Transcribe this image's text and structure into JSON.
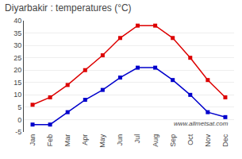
{
  "chart_data": {
    "type": "line",
    "title": "Diyarbakir : temperatures (°C)",
    "categories": [
      "Jan",
      "Feb",
      "Mar",
      "Apr",
      "May",
      "Jun",
      "Jul",
      "Aug",
      "Sep",
      "Oct",
      "Nov",
      "Dec"
    ],
    "series": [
      {
        "color": "#dd0000",
        "marker": "square",
        "line_style": "solid",
        "values": [
          6,
          9,
          14,
          20,
          26,
          33,
          38,
          38,
          33,
          25,
          16,
          9
        ]
      },
      {
        "color": "#0000cc",
        "marker": "square",
        "line_style": "solid",
        "values": [
          -2,
          -2,
          3,
          8,
          12,
          17,
          21,
          21,
          16,
          10,
          3,
          1
        ]
      }
    ],
    "ylim": [
      -5,
      40
    ],
    "yticks": [
      -5,
      0,
      5,
      10,
      15,
      20,
      25,
      30,
      35,
      40
    ],
    "grid": true,
    "annotations": [
      "www.allmetsat.com"
    ]
  }
}
